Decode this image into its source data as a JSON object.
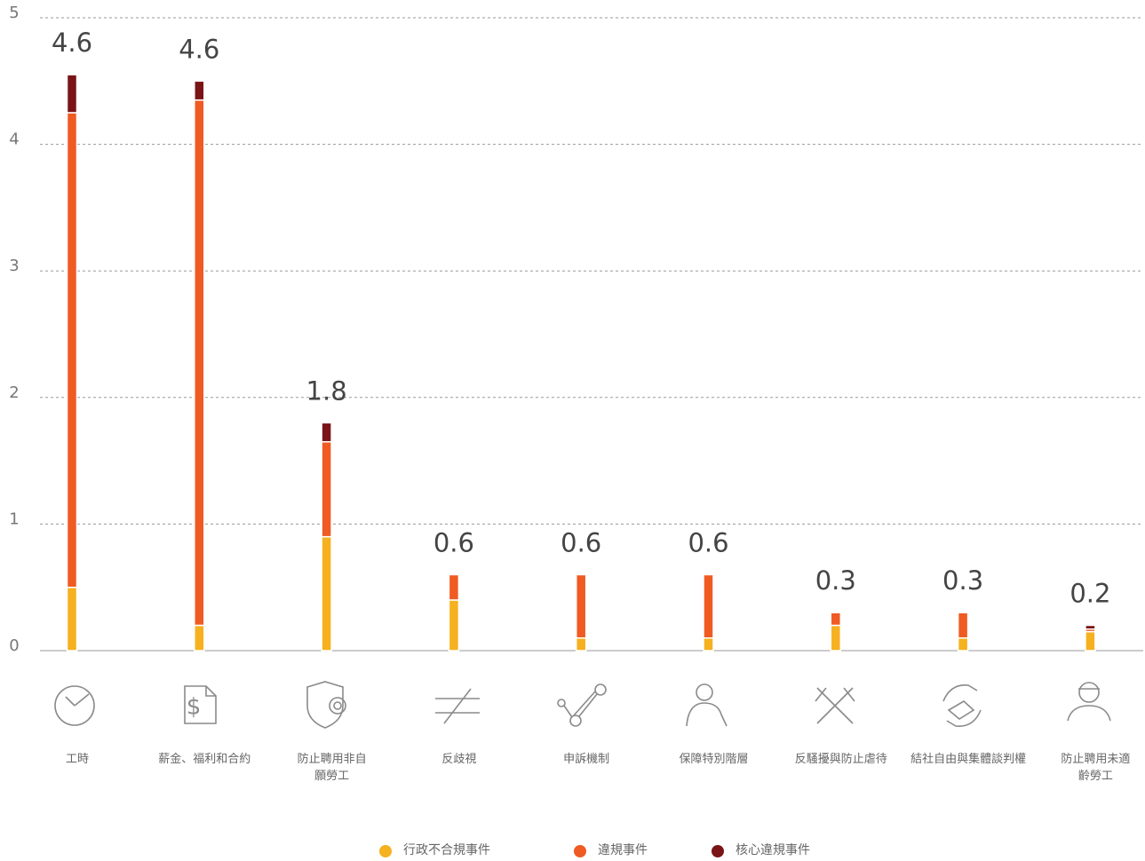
{
  "chart_data": {
    "type": "stacked_bar",
    "categories": [
      "工時",
      "薪金、福利和合約",
      "防止聘用非自\n願勞工",
      "反歧視",
      "申訴機制",
      "保障特別階層",
      "反騷擾與防止虐待",
      "結社自由與集體談判權",
      "防止聘用未適\n齡勞工"
    ],
    "series": [
      {
        "name": "行政不合規事件",
        "color": "#f5b11f",
        "values": [
          0.5,
          0.2,
          0.9,
          0.4,
          0.1,
          0.1,
          0.2,
          0.1,
          0.15
        ]
      },
      {
        "name": "違規事件",
        "color": "#ef5b23",
        "values": [
          3.75,
          4.15,
          0.75,
          0.2,
          0.5,
          0.5,
          0.1,
          0.2,
          0.02
        ]
      },
      {
        "name": "核心違規事件",
        "color": "#7a1417",
        "values": [
          0.3,
          0.15,
          0.15,
          0,
          0,
          0,
          0,
          0,
          0.03
        ]
      }
    ],
    "totals": [
      4.6,
      4.6,
      1.8,
      0.6,
      0.6,
      0.6,
      0.3,
      0.3,
      0.2
    ],
    "ylim": [
      0,
      5
    ],
    "yticks": [
      0,
      1,
      2,
      3,
      4,
      5
    ],
    "grid": true
  }
}
